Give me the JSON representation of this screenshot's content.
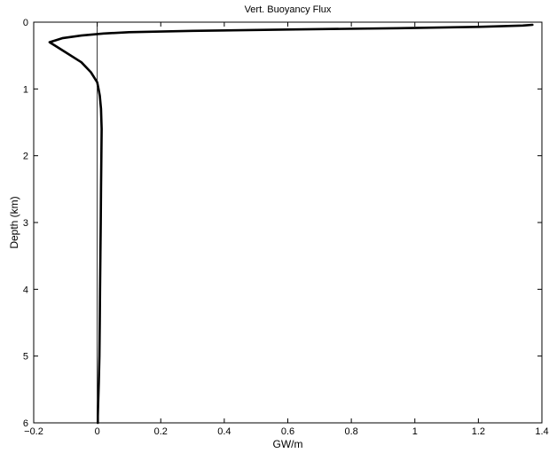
{
  "chart_data": {
    "type": "line",
    "title": "Vert. Buoyancy Flux",
    "xlabel": "GW/m",
    "ylabel": "Depth (km)",
    "xlim": [
      -0.2,
      1.4
    ],
    "ylim": [
      0,
      6
    ],
    "y_reversed": true,
    "grid": false,
    "xticks": [
      "−0.2",
      "0",
      "0.2",
      "0.4",
      "0.6",
      "0.8",
      "1",
      "1.2",
      "1.4"
    ],
    "yticks": [
      "0",
      "1",
      "2",
      "3",
      "4",
      "5",
      "6"
    ],
    "reference_line_x": 0,
    "series": [
      {
        "x": [
          1.37,
          1.34,
          1.2,
          0.95,
          0.6,
          0.3,
          0.1,
          0.02,
          -0.05,
          -0.11,
          -0.15,
          -0.13,
          -0.1,
          -0.05,
          -0.02,
          0.0,
          0.004,
          0.008,
          0.012,
          0.014,
          0.013,
          0.012,
          0.011,
          0.01,
          0.009,
          0.008,
          0.007,
          0.005,
          0.003,
          0.002,
          0.002
        ],
        "y": [
          0.04,
          0.05,
          0.07,
          0.09,
          0.11,
          0.13,
          0.15,
          0.17,
          0.2,
          0.24,
          0.3,
          0.36,
          0.45,
          0.6,
          0.75,
          0.9,
          1.0,
          1.1,
          1.3,
          1.6,
          2.0,
          2.5,
          3.0,
          3.5,
          4.0,
          4.5,
          5.0,
          5.4,
          5.7,
          5.9,
          6.0
        ]
      }
    ]
  }
}
